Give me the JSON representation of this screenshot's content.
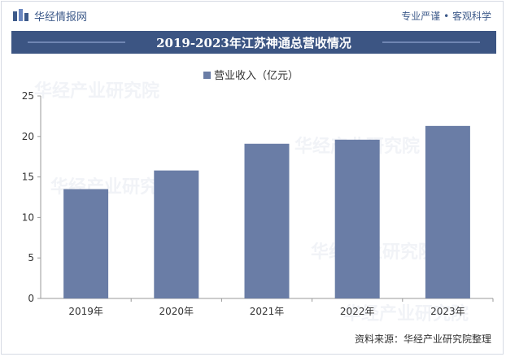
{
  "header": {
    "brand_name": "华经情报网",
    "tagline": "专业严谨 • 客观科学"
  },
  "chart_data": {
    "type": "bar",
    "title": "2019-2023年江苏神通总营收情况",
    "categories": [
      "2019年",
      "2020年",
      "2021年",
      "2022年",
      "2023年"
    ],
    "series": [
      {
        "name": "营业收入（亿元）",
        "values": [
          13.5,
          15.8,
          19.1,
          19.6,
          21.3
        ],
        "color": "#6a7da6"
      }
    ],
    "yticks": [
      0,
      5,
      10,
      15,
      20,
      25
    ],
    "ylim": [
      0,
      25
    ],
    "grid": false,
    "legend_position": "top-center"
  },
  "footer": {
    "source": "资料来源：华经产业研究院整理"
  },
  "watermark_text": "华经产业研究院"
}
